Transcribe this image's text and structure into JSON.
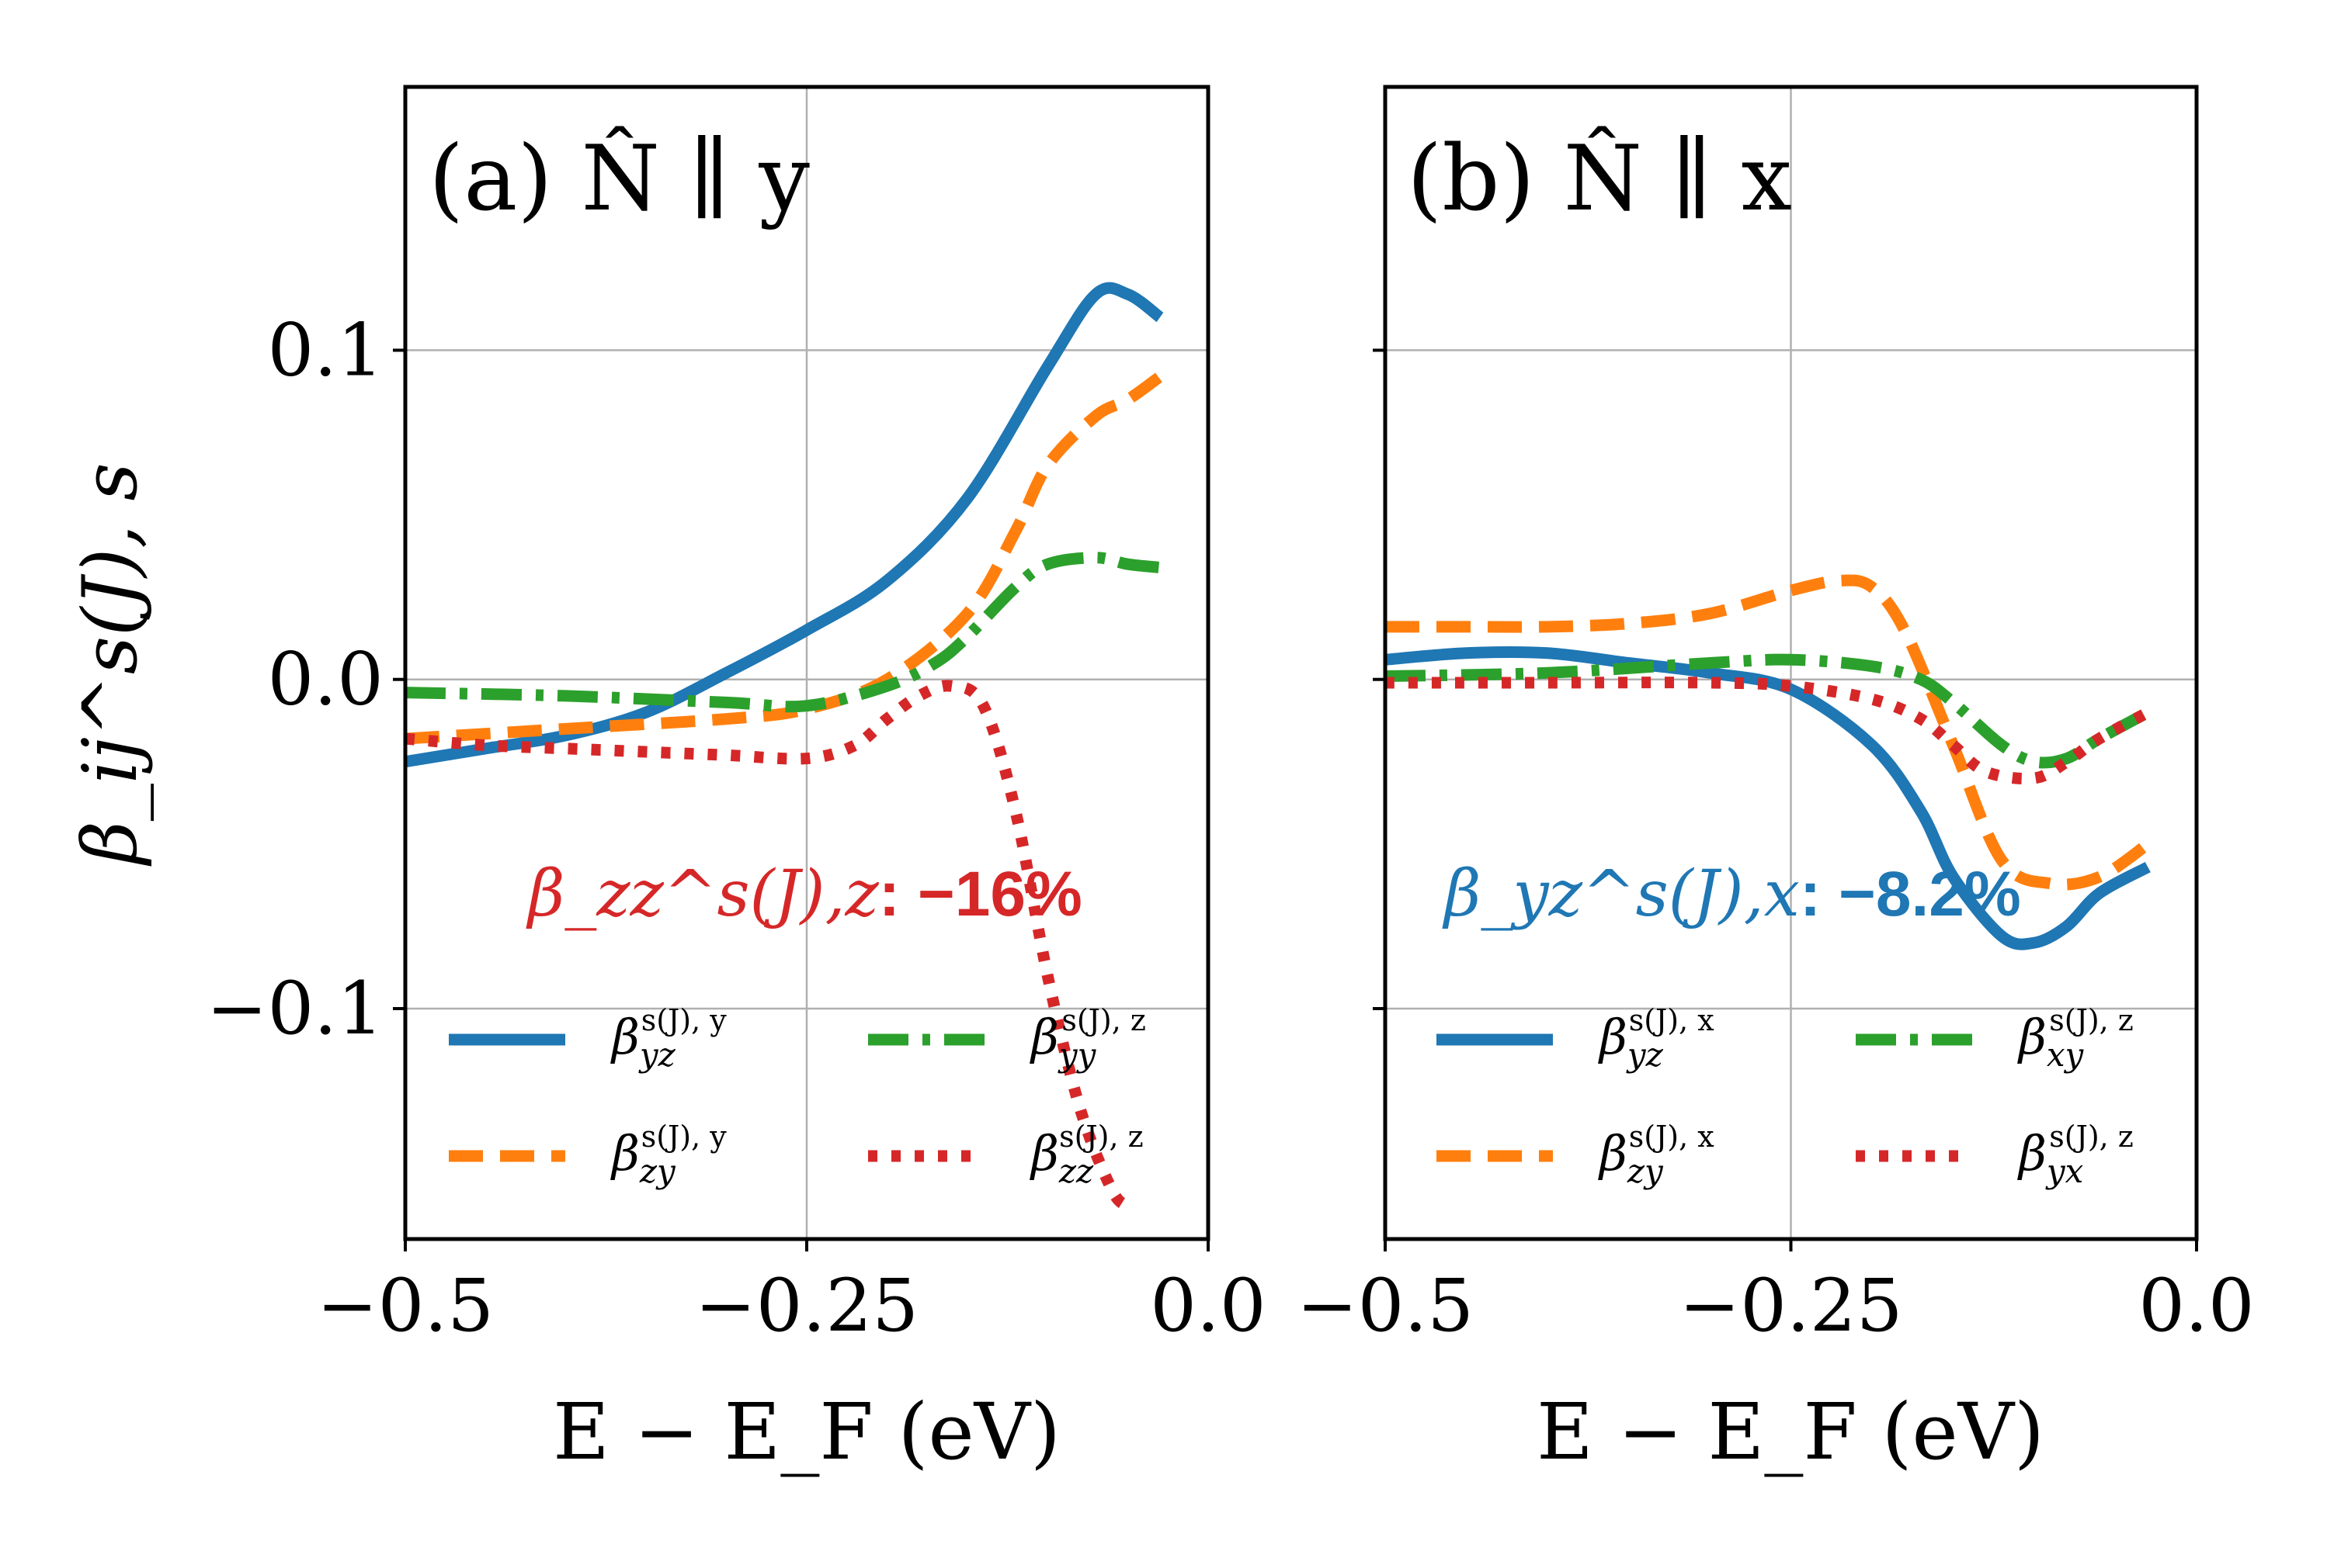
{
  "figure": {
    "ylabel": "β_ij^s(J), s",
    "xlabel": "E − E_F (eV)"
  },
  "chart_data": [
    {
      "type": "line",
      "panel": "a",
      "title": "(a) N̂ ∥ y",
      "xlabel": "E − E_F (eV)",
      "ylabel": "β_ij^s(J), s",
      "xlim": [
        -0.5,
        0.0
      ],
      "ylim": [
        -0.17,
        0.18
      ],
      "xticks": [
        -0.5,
        -0.25,
        0.0
      ],
      "xtick_labels": [
        "−0.5",
        "−0.25",
        "0.0"
      ],
      "yticks": [
        -0.1,
        0.0,
        0.1
      ],
      "ytick_labels": [
        "−0.1",
        "0.0",
        "0.1"
      ],
      "grid": true,
      "legend_position": "lower-center",
      "annotation": {
        "text": "β_zz^s(J),z: −16%",
        "label": "β_zz^s(J),z",
        "value": ": −16%",
        "color": "#d62728"
      },
      "series": [
        {
          "name": "β_yz^s(J),y",
          "sym": "β",
          "sub": "yz",
          "sup": "s(J), y",
          "color": "#1f77b4",
          "style": "solid",
          "x": [
            -0.5,
            -0.45,
            -0.4,
            -0.35,
            -0.3,
            -0.25,
            -0.2,
            -0.15,
            -0.1,
            -0.07,
            -0.05,
            -0.03
          ],
          "y": [
            -0.025,
            -0.021,
            -0.017,
            -0.01,
            0.002,
            0.015,
            0.03,
            0.055,
            0.095,
            0.117,
            0.117,
            0.11
          ]
        },
        {
          "name": "β_zy^s(J),y",
          "sym": "β",
          "sub": "zy",
          "sup": "s(J), y",
          "color": "#ff7f0e",
          "style": "dashed",
          "x": [
            -0.5,
            -0.4,
            -0.3,
            -0.25,
            -0.2,
            -0.15,
            -0.12,
            -0.1,
            -0.07,
            -0.05,
            -0.03
          ],
          "y": [
            -0.018,
            -0.015,
            -0.012,
            -0.009,
            0.0,
            0.02,
            0.045,
            0.065,
            0.08,
            0.085,
            0.092
          ]
        },
        {
          "name": "β_yy^s(J),z",
          "sym": "β",
          "sub": "yy",
          "sup": "s(J), z",
          "color": "#2ca02c",
          "style": "dashdot",
          "x": [
            -0.5,
            -0.4,
            -0.3,
            -0.25,
            -0.2,
            -0.17,
            -0.15,
            -0.12,
            -0.1,
            -0.07,
            -0.05,
            -0.03
          ],
          "y": [
            -0.004,
            -0.005,
            -0.007,
            -0.008,
            -0.002,
            0.005,
            0.013,
            0.028,
            0.035,
            0.037,
            0.035,
            0.034
          ]
        },
        {
          "name": "β_zz^s(J),z",
          "sym": "β",
          "sub": "zz",
          "sup": "s(J), z",
          "color": "#d62728",
          "style": "dotted",
          "x": [
            -0.5,
            -0.45,
            -0.4,
            -0.35,
            -0.3,
            -0.25,
            -0.22,
            -0.2,
            -0.18,
            -0.16,
            -0.14,
            -0.12,
            -0.1,
            -0.08,
            -0.06,
            -0.05
          ],
          "y": [
            -0.018,
            -0.02,
            -0.021,
            -0.022,
            -0.023,
            -0.024,
            -0.02,
            -0.012,
            -0.005,
            -0.002,
            -0.008,
            -0.04,
            -0.09,
            -0.13,
            -0.155,
            -0.16
          ]
        }
      ]
    },
    {
      "type": "line",
      "panel": "b",
      "title": "(b) N̂ ∥ x",
      "xlabel": "E − E_F (eV)",
      "xlim": [
        -0.5,
        0.0
      ],
      "ylim": [
        -0.17,
        0.18
      ],
      "xticks": [
        -0.5,
        -0.25,
        0.0
      ],
      "xtick_labels": [
        "−0.5",
        "−0.25",
        "0.0"
      ],
      "yticks": [
        -0.1,
        0.0,
        0.1
      ],
      "grid": true,
      "legend_position": "lower-center",
      "annotation": {
        "text": "β_yz^s(J),x: −8.2%",
        "label": "β_yz^s(J),x",
        "value": ": −8.2%",
        "color": "#1f77b4"
      },
      "series": [
        {
          "name": "β_yz^s(J),x",
          "sym": "β",
          "sub": "yz",
          "sup": "s(J), x",
          "color": "#1f77b4",
          "style": "solid",
          "x": [
            -0.5,
            -0.45,
            -0.4,
            -0.35,
            -0.3,
            -0.25,
            -0.2,
            -0.17,
            -0.15,
            -0.12,
            -0.1,
            -0.08,
            -0.06,
            -0.03
          ],
          "y": [
            0.006,
            0.008,
            0.008,
            0.005,
            0.002,
            -0.003,
            -0.02,
            -0.04,
            -0.06,
            -0.078,
            -0.08,
            -0.075,
            -0.065,
            -0.057
          ]
        },
        {
          "name": "β_zy^s(J),x",
          "sym": "β",
          "sub": "zy",
          "sup": "s(J), x",
          "color": "#ff7f0e",
          "style": "dashed",
          "x": [
            -0.5,
            -0.45,
            -0.4,
            -0.35,
            -0.3,
            -0.25,
            -0.22,
            -0.2,
            -0.18,
            -0.15,
            -0.12,
            -0.09,
            -0.06,
            -0.03
          ],
          "y": [
            0.016,
            0.016,
            0.016,
            0.017,
            0.02,
            0.027,
            0.03,
            0.028,
            0.015,
            -0.02,
            -0.055,
            -0.062,
            -0.06,
            -0.05
          ]
        },
        {
          "name": "β_xy^s(J),z",
          "sym": "β",
          "sub": "xy",
          "sup": "s(J), z",
          "color": "#2ca02c",
          "style": "dashdot",
          "x": [
            -0.5,
            -0.4,
            -0.3,
            -0.25,
            -0.2,
            -0.17,
            -0.15,
            -0.12,
            -0.1,
            -0.08,
            -0.06,
            -0.03
          ],
          "y": [
            0.001,
            0.002,
            0.005,
            0.006,
            0.004,
            0.0,
            -0.007,
            -0.02,
            -0.025,
            -0.024,
            -0.018,
            -0.01
          ]
        },
        {
          "name": "β_yx^s(J),z",
          "sym": "β",
          "sub": "yx",
          "sup": "s(J), z",
          "color": "#d62728",
          "style": "dotted",
          "x": [
            -0.5,
            -0.4,
            -0.3,
            -0.25,
            -0.2,
            -0.17,
            -0.15,
            -0.13,
            -0.1,
            -0.08,
            -0.06,
            -0.03
          ],
          "y": [
            -0.001,
            -0.001,
            -0.001,
            -0.002,
            -0.006,
            -0.012,
            -0.02,
            -0.028,
            -0.03,
            -0.025,
            -0.018,
            -0.01
          ]
        }
      ]
    }
  ]
}
